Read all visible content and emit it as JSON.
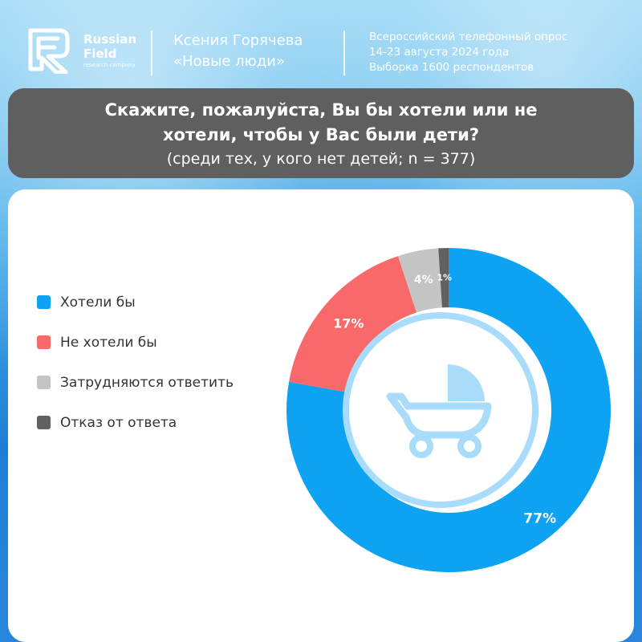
{
  "brand": {
    "name_line1": "Russian",
    "name_line2": "Field",
    "subtitle": "research company"
  },
  "author": {
    "name": "Ксения Горячева",
    "party": "«Новые люди»"
  },
  "survey": {
    "line1": "Всероссийский телефонный опрос",
    "line2": "14-23 августа 2024 года",
    "line3": "Выборка 1600 респондентов"
  },
  "question": {
    "line1": "Скажите, пожалуйста, Вы бы хотели или не",
    "line2": "хотели, чтобы у Вас были дети?",
    "note": "(среди тех, у кого нет детей; n = 377)"
  },
  "colors": {
    "blue": "#0ea2f2",
    "red": "#f86a6a",
    "light_gray": "#c4c4c4",
    "dark_gray": "#616161",
    "icon": "#a9dcfa"
  },
  "center_icon": "baby-stroller-icon",
  "chart_data": {
    "type": "pie",
    "style": "donut",
    "legend_position": "left",
    "categories": [
      "Хотели бы",
      "Не хотели бы",
      "Затрудняются ответить",
      "Отказ от ответа"
    ],
    "values": [
      77,
      17,
      4,
      1
    ],
    "labels": [
      "77%",
      "17%",
      "4%",
      "1%"
    ],
    "colors": [
      "#0ea2f2",
      "#f86a6a",
      "#c4c4c4",
      "#616161"
    ]
  }
}
